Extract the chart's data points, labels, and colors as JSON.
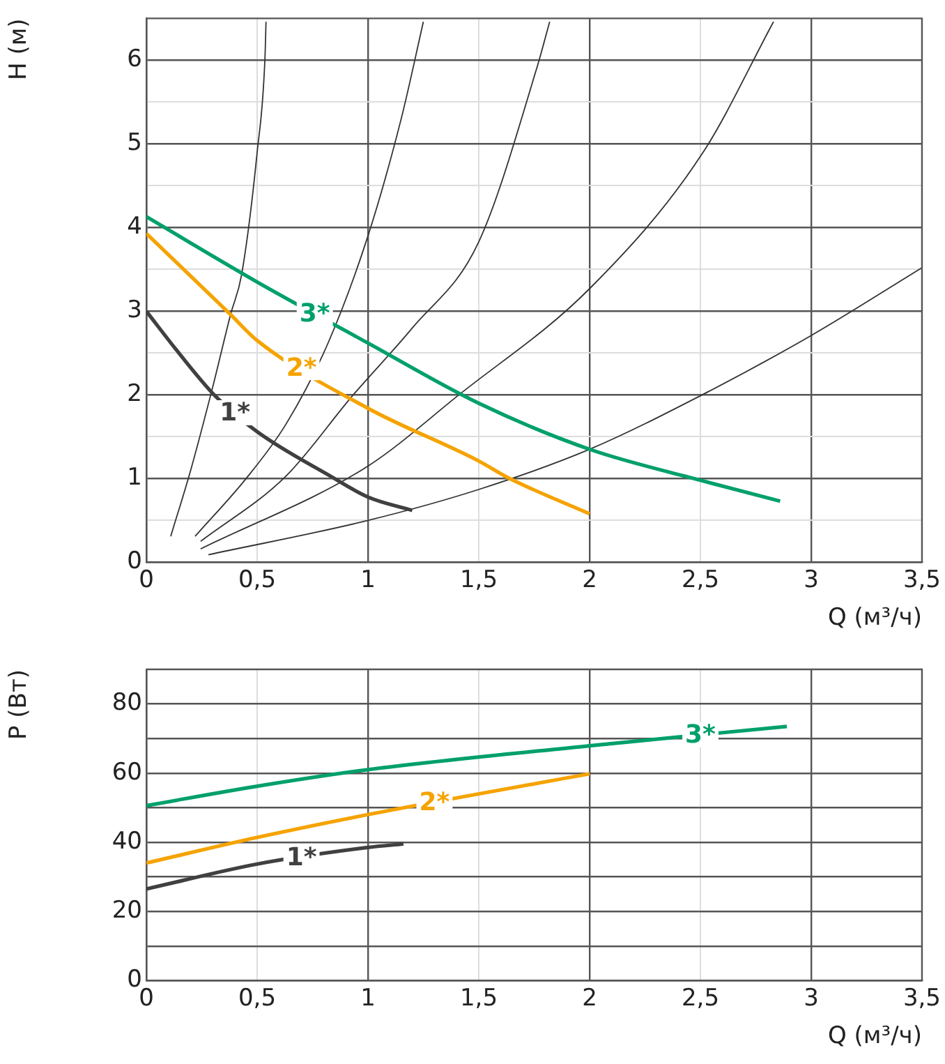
{
  "chart_data": [
    {
      "type": "line",
      "ylabel": "H (м)",
      "xlabel": "Q (м³/ч)",
      "xlim": [
        0,
        3.5
      ],
      "ylim": [
        0,
        6.5
      ],
      "xticks": [
        0,
        {
          "value": 0.5,
          "label": "0,5"
        },
        1,
        {
          "value": 1.5,
          "label": "1,5"
        },
        2,
        {
          "value": 2.5,
          "label": "2,5"
        },
        3,
        {
          "value": 3.5,
          "label": "3,5"
        }
      ],
      "yticks": [
        0,
        {
          "value": 0.5,
          "label": null
        },
        1,
        {
          "value": 1.5,
          "label": null
        },
        2,
        {
          "value": 2.5,
          "label": null
        },
        3,
        {
          "value": 3.5,
          "label": null
        },
        4,
        {
          "value": 4.5,
          "label": null
        },
        5,
        {
          "value": 5.5,
          "label": null
        },
        6
      ],
      "grid": true,
      "legend": false,
      "marker": "none",
      "line_style": "solid",
      "series": [
        {
          "color": "#333333",
          "x": [
            0.11,
            0.2,
            0.3,
            0.38,
            0.43,
            0.5,
            0.535,
            0.54
          ],
          "values": [
            0.31,
            1.1,
            2.1,
            2.96,
            3.44,
            4.9,
            6.01,
            6.46
          ]
        },
        {
          "color": "#333333",
          "x": [
            0.22,
            0.45,
            0.63,
            0.82,
            1.0,
            1.15,
            1.25
          ],
          "values": [
            0.31,
            1.0,
            1.65,
            2.62,
            3.9,
            5.3,
            6.46
          ]
        },
        {
          "color": "#333333",
          "x": [
            0.245,
            0.63,
            0.93,
            1.2,
            1.5,
            1.76,
            1.82
          ],
          "values": [
            0.25,
            1.03,
            1.99,
            2.8,
            3.83,
            5.89,
            6.46
          ]
        },
        {
          "color": "#333333",
          "x": [
            0.245,
            1.0,
            1.41,
            2.0,
            2.51,
            2.83
          ],
          "values": [
            0.16,
            1.15,
            2.0,
            3.27,
            4.89,
            6.46
          ]
        },
        {
          "color": "#333333",
          "x": [
            0.28,
            1.0,
            1.5,
            2.0,
            2.5,
            3.0,
            3.5
          ],
          "values": [
            0.09,
            0.5,
            0.87,
            1.35,
            1.99,
            2.71,
            3.52
          ]
        },
        {
          "name": "1*",
          "color": "#404040",
          "x": [
            0,
            0.15,
            0.31,
            0.5,
            0.83,
            1.0,
            1.2
          ],
          "values": [
            3.0,
            2.49,
            1.99,
            1.56,
            1.03,
            0.78,
            0.62
          ]
        },
        {
          "name": "2*",
          "color": "#f5a300",
          "x": [
            0,
            0.38,
            0.5,
            1.0,
            1.5,
            1.64,
            2.0
          ],
          "values": [
            3.93,
            2.96,
            2.65,
            1.84,
            1.21,
            1.0,
            0.58
          ]
        },
        {
          "name": "3*",
          "color": "#00a06a",
          "x": [
            0,
            0.5,
            1.0,
            1.5,
            2.0,
            2.5,
            2.86
          ],
          "values": [
            4.13,
            3.35,
            2.62,
            1.9,
            1.35,
            0.98,
            0.73
          ]
        }
      ]
    },
    {
      "type": "line",
      "ylabel": "P (Вт)",
      "xlabel": "Q (м³/ч)",
      "xlim": [
        0,
        3.5
      ],
      "ylim": [
        0,
        90
      ],
      "xticks": [
        0,
        {
          "value": 0.5,
          "label": "0,5"
        },
        1,
        {
          "value": 1.5,
          "label": "1,5"
        },
        2,
        {
          "value": 2.5,
          "label": "2,5"
        },
        3,
        {
          "value": 3.5,
          "label": "3,5"
        }
      ],
      "yticks": [
        0,
        {
          "value": 10,
          "label": null
        },
        20,
        {
          "value": 30,
          "label": null
        },
        40,
        {
          "value": 50,
          "label": null
        },
        60,
        {
          "value": 70,
          "label": null
        },
        80
      ],
      "grid": true,
      "legend": false,
      "marker": "none",
      "line_style": "solid",
      "series": [
        {
          "name": "1*",
          "color": "#404040",
          "x": [
            0,
            0.5,
            1.0,
            1.16
          ],
          "values": [
            26.5,
            33.7,
            38.5,
            39.5
          ]
        },
        {
          "name": "2*",
          "color": "#f5a300",
          "x": [
            0,
            0.5,
            1.0,
            2.0
          ],
          "values": [
            34,
            41.4,
            48,
            59.8
          ]
        },
        {
          "name": "3*",
          "color": "#00a06a",
          "x": [
            0,
            0.5,
            1.0,
            2.0,
            2.89
          ],
          "values": [
            50.6,
            56.2,
            61,
            67.9,
            73.5
          ]
        }
      ]
    }
  ]
}
